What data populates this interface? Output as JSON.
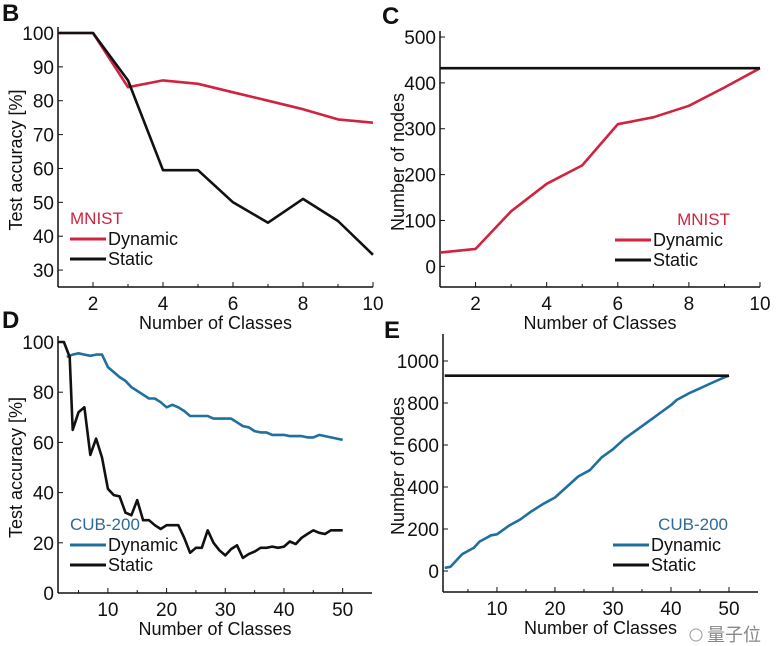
{
  "watermark": "量子位",
  "colors": {
    "mnist": "#d0233f",
    "cub": "#1f6f9f",
    "static": "#111111",
    "mnist_label": "#d0233f",
    "cub_label": "#2f6a96"
  },
  "chart_data": [
    {
      "panel": "B",
      "type": "line",
      "dataset_label": "MNIST",
      "xlabel": "Number of Classes",
      "ylabel": "Test accuracy [%]",
      "xlim": [
        1,
        10
      ],
      "ylim": [
        25,
        100
      ],
      "xticks": [
        2,
        4,
        6,
        8,
        10
      ],
      "yticks": [
        30,
        40,
        50,
        60,
        70,
        80,
        90,
        100
      ],
      "legend": "bottom-left",
      "series": [
        {
          "name": "Dynamic",
          "x": [
            1,
            2,
            3,
            4,
            5,
            6,
            7,
            8,
            9,
            10
          ],
          "values": [
            100,
            100,
            84,
            86,
            85,
            82.5,
            80,
            77.5,
            74.5,
            73.5
          ]
        },
        {
          "name": "Static",
          "x": [
            1,
            2,
            3,
            4,
            5,
            6,
            7,
            8,
            9,
            10
          ],
          "values": [
            100,
            100,
            86,
            59.5,
            59.5,
            50,
            44,
            51,
            44.5,
            34.5
          ]
        }
      ]
    },
    {
      "panel": "C",
      "type": "line",
      "dataset_label": "MNIST",
      "xlabel": "Number of Classes",
      "ylabel": "Number of nodes",
      "xlim": [
        1,
        10
      ],
      "ylim": [
        -45,
        500
      ],
      "xticks": [
        2,
        4,
        6,
        8,
        10
      ],
      "yticks": [
        0,
        100,
        200,
        300,
        400,
        500
      ],
      "legend": "bottom-right",
      "series": [
        {
          "name": "Dynamic",
          "x": [
            1,
            2,
            3,
            4,
            5,
            6,
            7,
            8,
            9,
            10
          ],
          "values": [
            30,
            38,
            120,
            180,
            220,
            310,
            325,
            350,
            390,
            432
          ]
        },
        {
          "name": "Static",
          "x": [
            1,
            10
          ],
          "values": [
            432,
            432
          ]
        }
      ]
    },
    {
      "panel": "D",
      "type": "line",
      "dataset_label": "CUB-200",
      "xlabel": "Number of Classes",
      "ylabel": "Test accuracy [%]",
      "xlim": [
        1.5,
        55
      ],
      "ylim": [
        0,
        100
      ],
      "xticks": [
        10,
        20,
        30,
        40,
        50
      ],
      "yticks": [
        0,
        20,
        40,
        60,
        80,
        100
      ],
      "legend": "bottom-left",
      "series": [
        {
          "name": "Dynamic",
          "x": [
            3,
            4,
            5,
            6,
            7,
            8,
            9,
            10,
            11,
            12,
            13,
            14,
            15,
            16,
            17,
            18,
            19,
            20,
            21,
            22,
            23,
            24,
            25,
            26,
            27,
            28,
            29,
            30,
            31,
            32,
            33,
            34,
            35,
            36,
            37,
            38,
            39,
            40,
            41,
            42,
            43,
            44,
            45,
            46,
            47,
            48,
            49,
            50
          ],
          "values": [
            94,
            95,
            95.5,
            95,
            94.5,
            95,
            95,
            90,
            88,
            86,
            84.5,
            82,
            80.5,
            79,
            77.5,
            77.5,
            76,
            74,
            75,
            74,
            72.5,
            70.5,
            70.5,
            70.5,
            70.5,
            69.5,
            69.5,
            69.5,
            69.5,
            68,
            66.5,
            66,
            64.5,
            64,
            64,
            63,
            63,
            63,
            62.5,
            62.5,
            62.5,
            62,
            62,
            63,
            62.5,
            62,
            61.5,
            61
          ]
        },
        {
          "name": "Static",
          "x": [
            1.5,
            2.5,
            3.5,
            4,
            5,
            6,
            7,
            8,
            9,
            10,
            11,
            12,
            13,
            14,
            15,
            16,
            17,
            18,
            19,
            20,
            21,
            22,
            23,
            24,
            25,
            26,
            27,
            28,
            29,
            30,
            31,
            32,
            33,
            34,
            35,
            36,
            37,
            38,
            39,
            40,
            41,
            42,
            43,
            44,
            45,
            46,
            47,
            48,
            49,
            50
          ],
          "values": [
            100,
            100,
            94,
            65,
            72,
            74,
            55,
            61.5,
            54,
            41.5,
            39,
            38.5,
            32,
            31,
            37,
            29,
            29,
            27,
            25.5,
            27,
            27,
            27,
            22,
            16,
            18,
            18,
            25,
            20,
            17,
            15,
            17.5,
            19,
            14,
            15.5,
            16.5,
            18,
            18,
            18.5,
            18,
            18.5,
            20.5,
            19.5,
            22,
            23.5,
            25,
            24,
            23.5,
            25,
            25,
            25
          ]
        }
      ]
    },
    {
      "panel": "E",
      "type": "line",
      "dataset_label": "CUB-200",
      "xlabel": "Number of Classes",
      "ylabel": "Number of nodes",
      "xlim": [
        0.7,
        55
      ],
      "ylim": [
        -100,
        1100
      ],
      "xticks": [
        10,
        20,
        30,
        40,
        50
      ],
      "yticks": [
        0,
        200,
        400,
        600,
        800,
        1000
      ],
      "legend": "bottom-right",
      "series": [
        {
          "name": "Dynamic",
          "x": [
            1,
            2,
            3,
            4,
            5,
            6,
            7,
            8,
            9,
            10,
            12,
            14,
            16,
            18,
            20,
            22,
            24,
            26,
            28,
            30,
            32,
            34,
            36,
            38,
            40,
            41,
            43,
            45,
            47,
            49,
            50
          ],
          "values": [
            15,
            20,
            50,
            80,
            95,
            110,
            140,
            155,
            170,
            175,
            215,
            245,
            285,
            320,
            350,
            400,
            450,
            480,
            540,
            580,
            630,
            670,
            710,
            750,
            790,
            815,
            845,
            870,
            895,
            920,
            930
          ]
        },
        {
          "name": "Static",
          "x": [
            1,
            50
          ],
          "values": [
            930,
            930
          ]
        }
      ]
    }
  ]
}
